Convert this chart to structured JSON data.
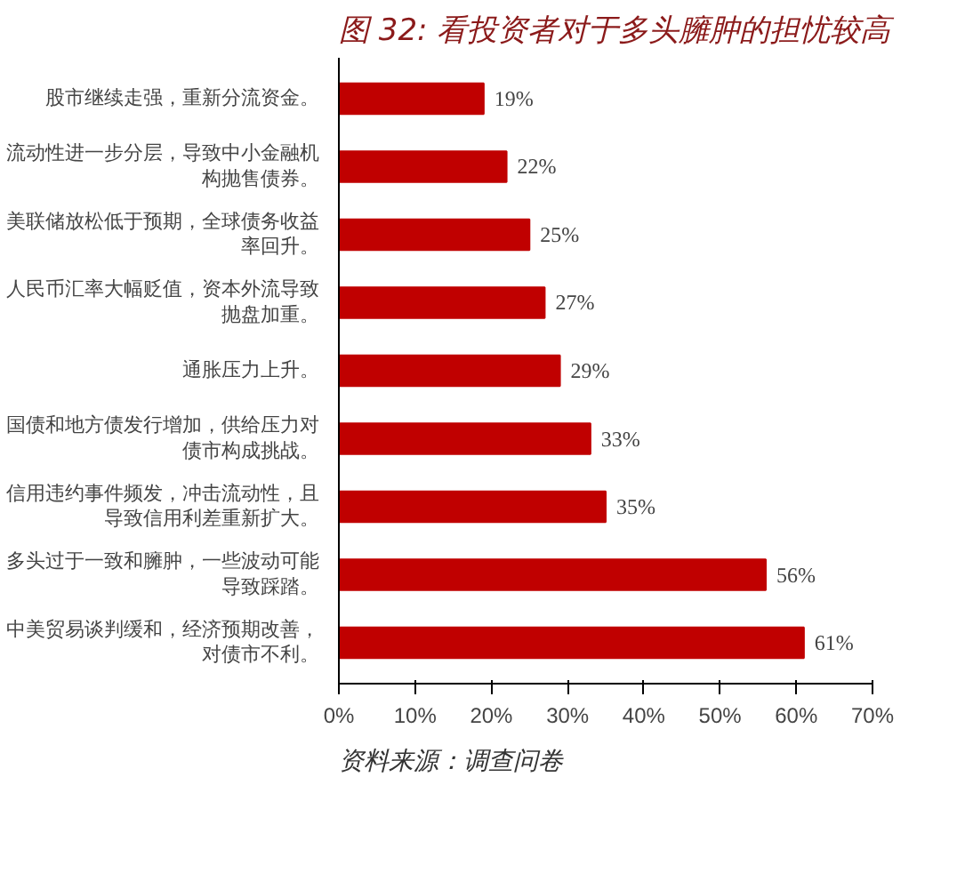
{
  "chart_data": {
    "type": "bar",
    "orientation": "horizontal",
    "title": "图 32: 看投资者对于多头臃肿的担忧较高",
    "categories": [
      "股市继续走强，重新分流资金。",
      "流动性进一步分层，导致中小金融机构抛售债券。",
      "美联储放松低于预期，全球债务收益率回升。",
      "人民币汇率大幅贬值，资本外流导致抛盘加重。",
      "通胀压力上升。",
      "国债和地方债发行增加，供给压力对债市构成挑战。",
      "信用违约事件频发，冲击流动性，且导致信用利差重新扩大。",
      "多头过于一致和臃肿，一些波动可能导致踩踏。",
      "中美贸易谈判缓和，经济预期改善，对债市不利。"
    ],
    "values": [
      19,
      22,
      25,
      27,
      29,
      33,
      35,
      56,
      61
    ],
    "value_labels": [
      "19%",
      "22%",
      "25%",
      "27%",
      "29%",
      "33%",
      "35%",
      "56%",
      "61%"
    ],
    "color": "#c00000",
    "xlim": [
      0,
      70
    ],
    "xticks": [
      {
        "value": 0,
        "label": "0%"
      },
      {
        "value": 10,
        "label": "10%"
      },
      {
        "value": 20,
        "label": "20%"
      },
      {
        "value": 30,
        "label": "30%"
      },
      {
        "value": 40,
        "label": "40%"
      },
      {
        "value": 50,
        "label": "50%"
      },
      {
        "value": 60,
        "label": "60%"
      },
      {
        "value": 70,
        "label": "70%"
      }
    ],
    "annotations": [
      "资料来源：调查问卷"
    ]
  }
}
